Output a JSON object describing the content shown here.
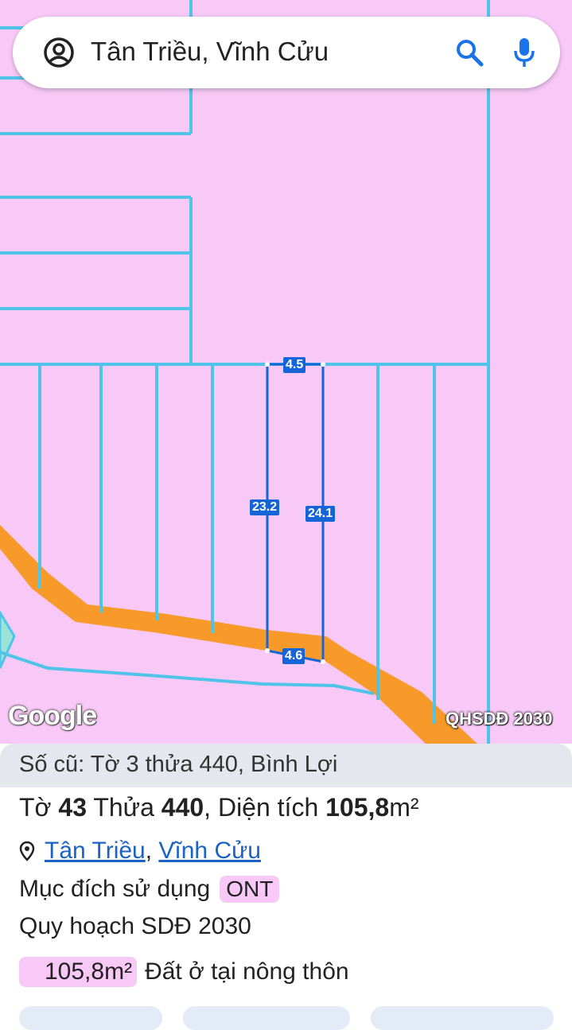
{
  "search": {
    "query": "Tân Triều, Vĩnh Cửu"
  },
  "map": {
    "dimension_labels": [
      "4.5",
      "23.2",
      "24.1",
      "4.6"
    ],
    "attribution": "Google",
    "layer_badge": "QHSDĐ 2030",
    "colors": {
      "land": "#f8c8f6",
      "boundary": "#4fc4e8",
      "road": "#f79a2a",
      "selected_parcel": "#1565d8"
    }
  },
  "panel": {
    "old_parcel": "Số cũ: Tờ 3 thửa 440, Bình Lợi",
    "sheet_label": "Tờ",
    "sheet_number": "43",
    "parcel_label": "Thửa",
    "parcel_number": "440",
    "area_label": "Diện tích",
    "area_value": "105,8",
    "area_unit": "m²",
    "ward_link": "Tân Triều",
    "district_link": "Vĩnh Cửu",
    "purpose_label": "Mục đích sử dụng",
    "purpose_code": "ONT",
    "plan_label": "Quy hoạch SDĐ 2030",
    "plan_area": "105,8m²",
    "plan_desc": "Đất ở tại nông thôn"
  }
}
